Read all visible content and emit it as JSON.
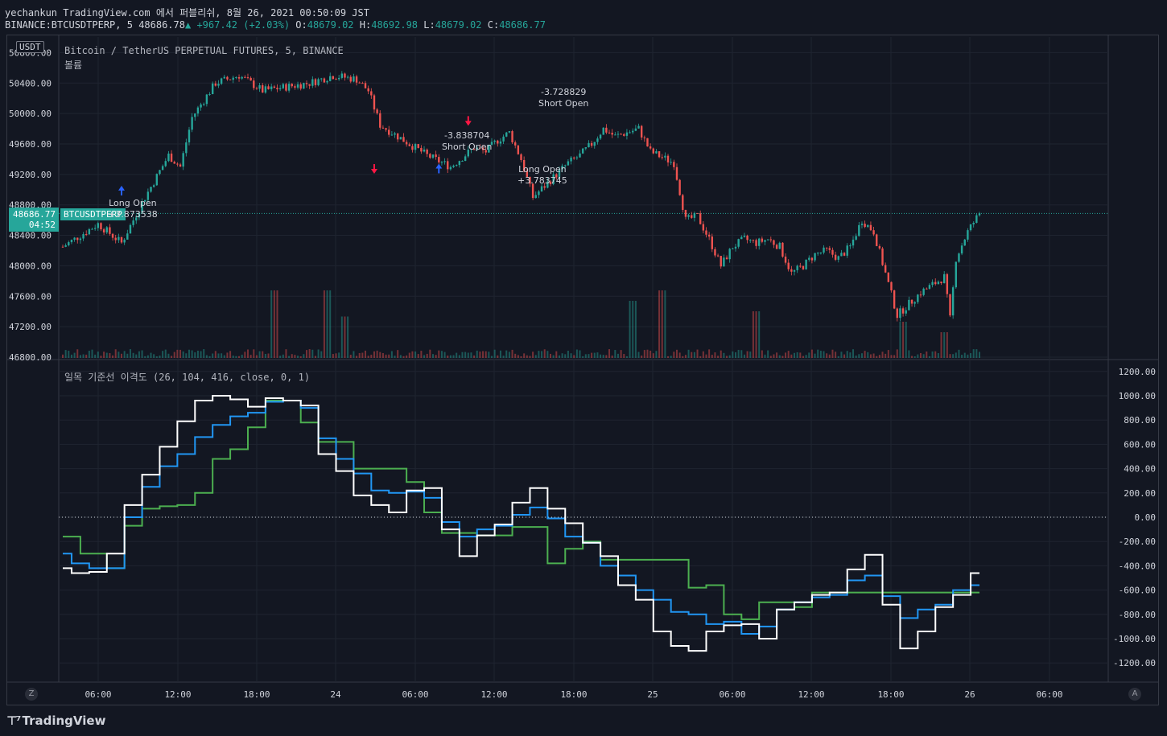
{
  "header": {
    "line1": "yechankun TradingView.com 에서 퍼블리쉬, 8월 26, 2021 00:50:09 JST",
    "symbol": "BINANCE:BTCUSDTPERP, 5",
    "last": "48686.78",
    "change": "+967.42 (+2.03%)",
    "o_label": "O:",
    "o_val": "48679.02",
    "h_label": "H:",
    "h_val": "48692.98",
    "l_label": "L:",
    "l_val": "48679.02",
    "c_label": "C:",
    "c_val": "48686.77"
  },
  "main_pane": {
    "title": "Bitcoin / TetherUS PERPETUAL FUTURES, 5, BINANCE",
    "volume_label": "볼륨",
    "currency": "USDT",
    "price_tag": "48686.77",
    "price_tag_time": "04:52",
    "symbol_tag": "BTCUSDTPERP"
  },
  "indicator_pane": {
    "title": "일목 기준선 이격도 (26, 104, 416, close, 0, 1)"
  },
  "annotations": [
    {
      "text1": "Long Open",
      "text2": "+3.873538",
      "dir": "up"
    },
    {
      "text1": "-3.838704",
      "text2": "Short Open",
      "dir": "down"
    },
    {
      "text1": "Long Open",
      "text2": "+3.783745",
      "dir": "up"
    },
    {
      "text1": "-3.728829",
      "text2": "Short Open",
      "dir": "down"
    }
  ],
  "x_ticks": [
    "06:00",
    "12:00",
    "18:00",
    "24",
    "06:00",
    "12:00",
    "18:00",
    "25",
    "06:00",
    "12:00",
    "18:00",
    "26",
    "06:00"
  ],
  "footer": {
    "logo": "TradingView",
    "left_btn": "Z",
    "right_btn": "A"
  },
  "colors": {
    "bg": "#131722",
    "up": "#26a69a",
    "down": "#ef5350",
    "white_line": "#ffffff",
    "blue_line": "#2196f3",
    "green_line": "#4caf50"
  },
  "chart_data": [
    {
      "type": "candlestick",
      "title": "Bitcoin / TetherUS PERPETUAL FUTURES, 5, BINANCE",
      "ylim": [
        46800,
        51000
      ],
      "y_ticks": [
        46800,
        47200,
        47600,
        48000,
        48400,
        48800,
        49200,
        49600,
        50000,
        50400,
        50800
      ],
      "close_path": [
        [
          0,
          48250
        ],
        [
          6,
          48550
        ],
        [
          10,
          48300
        ],
        [
          14,
          48900
        ],
        [
          18,
          49450
        ],
        [
          20,
          49300
        ],
        [
          22,
          49950
        ],
        [
          26,
          50400
        ],
        [
          30,
          50500
        ],
        [
          34,
          50300
        ],
        [
          38,
          50350
        ],
        [
          42,
          50400
        ],
        [
          46,
          50500
        ],
        [
          50,
          50450
        ],
        [
          52,
          50300
        ],
        [
          54,
          49850
        ],
        [
          58,
          49650
        ],
        [
          62,
          49450
        ],
        [
          66,
          49300
        ],
        [
          70,
          49550
        ],
        [
          72,
          49500
        ],
        [
          74,
          49650
        ],
        [
          76,
          49750
        ],
        [
          78,
          49400
        ],
        [
          80,
          48900
        ],
        [
          82,
          49050
        ],
        [
          86,
          49350
        ],
        [
          88,
          49450
        ],
        [
          90,
          49600
        ],
        [
          92,
          49800
        ],
        [
          94,
          49700
        ],
        [
          96,
          49750
        ],
        [
          98,
          49800
        ],
        [
          100,
          49500
        ],
        [
          104,
          49350
        ],
        [
          106,
          48600
        ],
        [
          108,
          48650
        ],
        [
          110,
          48350
        ],
        [
          112,
          48000
        ],
        [
          114,
          48250
        ],
        [
          116,
          48350
        ],
        [
          118,
          48300
        ],
        [
          120,
          48350
        ],
        [
          122,
          48250
        ],
        [
          124,
          47900
        ],
        [
          126,
          48000
        ],
        [
          128,
          48150
        ],
        [
          130,
          48200
        ],
        [
          132,
          48100
        ],
        [
          134,
          48250
        ],
        [
          136,
          48600
        ],
        [
          138,
          48450
        ],
        [
          140,
          47900
        ],
        [
          142,
          47350
        ],
        [
          144,
          47500
        ],
        [
          146,
          47650
        ],
        [
          148,
          47750
        ],
        [
          150,
          47850
        ],
        [
          151,
          47300
        ],
        [
          152,
          48100
        ],
        [
          154,
          48450
        ],
        [
          156,
          48690
        ]
      ],
      "x_range_hours": [
        0,
        156
      ]
    },
    {
      "type": "volume",
      "title": "볼륨",
      "spikes": [
        [
          36,
          0.6
        ],
        [
          45,
          0.6
        ],
        [
          48,
          0.35
        ],
        [
          97,
          0.5
        ],
        [
          102,
          0.6
        ],
        [
          118,
          0.4
        ],
        [
          143,
          0.3
        ],
        [
          150,
          0.2
        ]
      ]
    },
    {
      "type": "line",
      "title": "일목 기준선 이격도 (26, 104, 416, close, 0, 1)",
      "ylim": [
        -1350,
        1300
      ],
      "y_ticks": [
        1200,
        1000,
        800,
        600,
        400,
        200,
        0,
        -200,
        -400,
        -600,
        -800,
        -1000,
        -1200
      ],
      "series": [
        {
          "color": "#ffffff",
          "points": [
            [
              0,
              -420
            ],
            [
              3,
              -460
            ],
            [
              6,
              -450
            ],
            [
              9,
              -300
            ],
            [
              12,
              100
            ],
            [
              15,
              350
            ],
            [
              18,
              580
            ],
            [
              21,
              790
            ],
            [
              24,
              960
            ],
            [
              27,
              1000
            ],
            [
              30,
              970
            ],
            [
              33,
              910
            ],
            [
              36,
              980
            ],
            [
              39,
              960
            ],
            [
              42,
              920
            ],
            [
              45,
              520
            ],
            [
              48,
              380
            ],
            [
              51,
              180
            ],
            [
              54,
              100
            ],
            [
              57,
              40
            ],
            [
              60,
              220
            ],
            [
              63,
              240
            ],
            [
              66,
              -100
            ],
            [
              69,
              -320
            ],
            [
              72,
              -150
            ],
            [
              75,
              -60
            ],
            [
              78,
              120
            ],
            [
              81,
              240
            ],
            [
              84,
              70
            ],
            [
              87,
              -50
            ],
            [
              90,
              -210
            ],
            [
              93,
              -320
            ],
            [
              96,
              -560
            ],
            [
              99,
              -680
            ],
            [
              102,
              -940
            ],
            [
              105,
              -1060
            ],
            [
              108,
              -1100
            ],
            [
              111,
              -940
            ],
            [
              114,
              -890
            ],
            [
              117,
              -880
            ],
            [
              120,
              -1000
            ],
            [
              123,
              -760
            ],
            [
              126,
              -700
            ],
            [
              129,
              -640
            ],
            [
              132,
              -620
            ],
            [
              135,
              -430
            ],
            [
              138,
              -310
            ],
            [
              141,
              -720
            ],
            [
              144,
              -1080
            ],
            [
              147,
              -940
            ],
            [
              150,
              -740
            ],
            [
              153,
              -640
            ],
            [
              156,
              -460
            ]
          ]
        },
        {
          "color": "#2196f3",
          "points": [
            [
              0,
              -300
            ],
            [
              3,
              -380
            ],
            [
              6,
              -420
            ],
            [
              9,
              -420
            ],
            [
              12,
              0
            ],
            [
              15,
              250
            ],
            [
              18,
              420
            ],
            [
              21,
              520
            ],
            [
              24,
              660
            ],
            [
              27,
              760
            ],
            [
              30,
              830
            ],
            [
              33,
              860
            ],
            [
              36,
              950
            ],
            [
              39,
              960
            ],
            [
              42,
              900
            ],
            [
              45,
              650
            ],
            [
              48,
              480
            ],
            [
              51,
              360
            ],
            [
              54,
              220
            ],
            [
              57,
              200
            ],
            [
              60,
              210
            ],
            [
              63,
              160
            ],
            [
              66,
              -40
            ],
            [
              69,
              -160
            ],
            [
              72,
              -100
            ],
            [
              75,
              -70
            ],
            [
              78,
              20
            ],
            [
              81,
              80
            ],
            [
              84,
              -10
            ],
            [
              87,
              -160
            ],
            [
              90,
              -210
            ],
            [
              93,
              -400
            ],
            [
              96,
              -480
            ],
            [
              99,
              -600
            ],
            [
              102,
              -680
            ],
            [
              105,
              -780
            ],
            [
              108,
              -800
            ],
            [
              111,
              -880
            ],
            [
              114,
              -860
            ],
            [
              117,
              -960
            ],
            [
              120,
              -900
            ],
            [
              123,
              -760
            ],
            [
              126,
              -700
            ],
            [
              129,
              -660
            ],
            [
              132,
              -640
            ],
            [
              135,
              -520
            ],
            [
              138,
              -480
            ],
            [
              141,
              -650
            ],
            [
              144,
              -830
            ],
            [
              147,
              -760
            ],
            [
              150,
              -720
            ],
            [
              153,
              -600
            ],
            [
              156,
              -560
            ]
          ]
        },
        {
          "color": "#4caf50",
          "points": [
            [
              0,
              -160
            ],
            [
              6,
              -300
            ],
            [
              9,
              -420
            ],
            [
              12,
              -70
            ],
            [
              15,
              70
            ],
            [
              18,
              90
            ],
            [
              21,
              100
            ],
            [
              24,
              200
            ],
            [
              27,
              480
            ],
            [
              30,
              560
            ],
            [
              33,
              740
            ],
            [
              36,
              960
            ],
            [
              39,
              960
            ],
            [
              42,
              780
            ],
            [
              45,
              620
            ],
            [
              48,
              620
            ],
            [
              51,
              400
            ],
            [
              54,
              400
            ],
            [
              57,
              400
            ],
            [
              60,
              290
            ],
            [
              63,
              40
            ],
            [
              66,
              -130
            ],
            [
              69,
              -130
            ],
            [
              72,
              -150
            ],
            [
              75,
              -150
            ],
            [
              78,
              -80
            ],
            [
              81,
              -80
            ],
            [
              84,
              -380
            ],
            [
              87,
              -260
            ],
            [
              90,
              -200
            ],
            [
              93,
              -350
            ],
            [
              96,
              -350
            ],
            [
              99,
              -350
            ],
            [
              102,
              -350
            ],
            [
              105,
              -350
            ],
            [
              108,
              -580
            ],
            [
              111,
              -560
            ],
            [
              114,
              -800
            ],
            [
              117,
              -840
            ],
            [
              120,
              -700
            ],
            [
              123,
              -700
            ],
            [
              126,
              -740
            ],
            [
              129,
              -620
            ],
            [
              132,
              -620
            ],
            [
              135,
              -620
            ],
            [
              138,
              -620
            ],
            [
              141,
              -620
            ],
            [
              144,
              -620
            ],
            [
              147,
              -620
            ],
            [
              150,
              -620
            ],
            [
              153,
              -620
            ],
            [
              156,
              -620
            ]
          ]
        }
      ],
      "zero_line": 0
    }
  ]
}
